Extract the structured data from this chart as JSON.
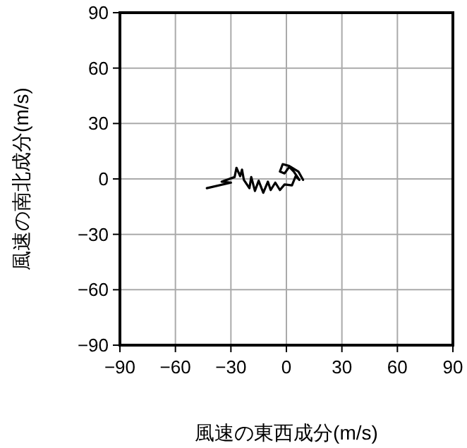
{
  "chart_data": {
    "type": "line",
    "xlabel": "風速の東西成分(m/s)",
    "ylabel": "風速の南北成分(m/s)",
    "xlim": [
      -90,
      90
    ],
    "ylim": [
      -90,
      90
    ],
    "xticks": [
      -90,
      -60,
      -30,
      0,
      30,
      60,
      90
    ],
    "yticks": [
      -90,
      -60,
      -30,
      0,
      30,
      60,
      90
    ],
    "grid": true,
    "series": [
      {
        "color": "#000000",
        "x": [
          -43,
          -30,
          -35,
          -28,
          -27,
          -25,
          -24,
          -23,
          -20,
          -19,
          -17,
          -15,
          -12.5,
          -10,
          -8.5,
          -6,
          -3.5,
          -1,
          3,
          5,
          7,
          4,
          1.5,
          -1,
          -3.5,
          -2,
          1.5,
          6.5,
          9
        ],
        "values": [
          -5,
          -2,
          -1.5,
          1,
          6,
          1.5,
          5,
          -0.5,
          -5,
          1,
          -6.5,
          -1,
          -7.5,
          -1.5,
          -6,
          -2,
          -6,
          -3,
          -3.5,
          1.5,
          -0.5,
          4,
          6.5,
          3,
          4,
          8,
          7,
          4,
          -0.5
        ]
      }
    ]
  }
}
